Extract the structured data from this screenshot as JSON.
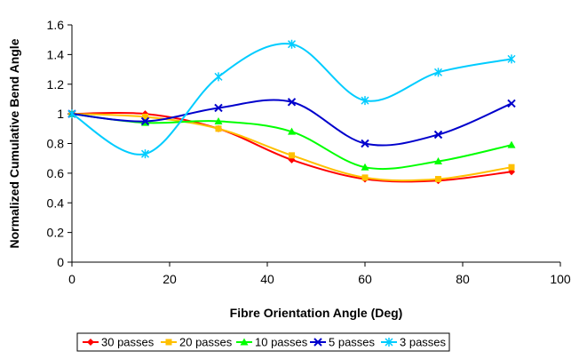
{
  "chart_data": {
    "type": "line",
    "xlabel": "Fibre Orientation Angle (Deg)",
    "ylabel": "Normalized Cumulative Bend Angle",
    "xlim": [
      0,
      100
    ],
    "ylim": [
      0,
      1.6
    ],
    "xticks": [
      0,
      20,
      40,
      60,
      80,
      100
    ],
    "yticks": [
      0,
      0.2,
      0.4,
      0.6,
      0.8,
      1,
      1.2,
      1.4,
      1.6
    ],
    "x": [
      0,
      15,
      30,
      45,
      60,
      75,
      90
    ],
    "grid": false,
    "legend_position": "bottom",
    "series": [
      {
        "name": "30 passes",
        "color": "#ff0000",
        "marker": "diamond",
        "values": [
          1.0,
          1.0,
          0.9,
          0.69,
          0.56,
          0.55,
          0.61
        ]
      },
      {
        "name": "20 passes",
        "color": "#ffc000",
        "marker": "square",
        "values": [
          1.0,
          0.98,
          0.9,
          0.72,
          0.57,
          0.56,
          0.64
        ]
      },
      {
        "name": "10 passes",
        "color": "#00ff00",
        "marker": "triangle",
        "values": [
          1.0,
          0.94,
          0.95,
          0.88,
          0.64,
          0.68,
          0.79
        ]
      },
      {
        "name": "5 passes",
        "color": "#0000cc",
        "marker": "x",
        "values": [
          1.0,
          0.95,
          1.04,
          1.08,
          0.8,
          0.86,
          1.07
        ]
      },
      {
        "name": "3 passes",
        "color": "#00ccff",
        "marker": "star",
        "values": [
          1.0,
          0.73,
          1.25,
          1.47,
          1.09,
          1.28,
          1.37
        ]
      }
    ]
  }
}
